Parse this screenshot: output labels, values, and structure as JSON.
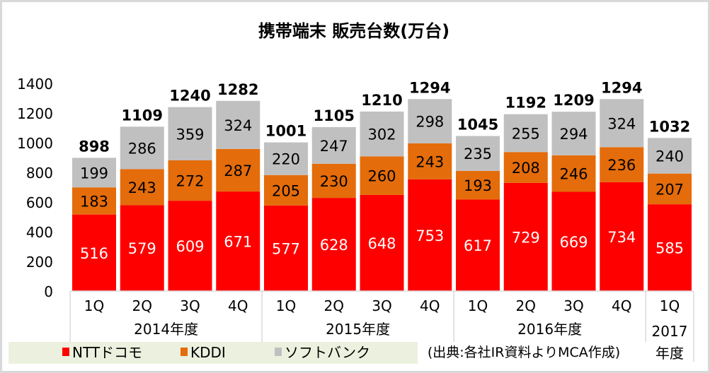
{
  "chart_data": {
    "type": "bar",
    "stacked": true,
    "title": "携帯端末 販売台数(万台)",
    "categories": [
      "1Q",
      "2Q",
      "3Q",
      "4Q",
      "1Q",
      "2Q",
      "3Q",
      "4Q",
      "1Q",
      "2Q",
      "3Q",
      "4Q",
      "1Q"
    ],
    "groups": [
      {
        "label": "2014年度",
        "count": 4
      },
      {
        "label": "2015年度",
        "count": 4
      },
      {
        "label": "2016年度",
        "count": 4
      },
      {
        "label": "2017年度",
        "label_lines": [
          "2017",
          "年度"
        ],
        "count": 1
      }
    ],
    "series": [
      {
        "name": "NTTドコモ",
        "color": "#ff0000",
        "label_color": "#ffffff",
        "values": [
          516,
          579,
          609,
          671,
          577,
          628,
          648,
          753,
          617,
          729,
          669,
          734,
          585
        ]
      },
      {
        "name": "KDDI",
        "color": "#e46c0a",
        "label_color": "#000000",
        "values": [
          183,
          243,
          272,
          287,
          205,
          230,
          260,
          243,
          193,
          208,
          246,
          236,
          207
        ]
      },
      {
        "name": "ソフトバンク",
        "color": "#c0c0c0",
        "label_color": "#000000",
        "values": [
          199,
          286,
          359,
          324,
          220,
          247,
          302,
          298,
          235,
          255,
          294,
          324,
          240
        ]
      }
    ],
    "totals": [
      898,
      1109,
      1240,
      1282,
      1001,
      1105,
      1210,
      1294,
      1045,
      1192,
      1209,
      1294,
      1032
    ],
    "ylim": [
      0,
      1400
    ],
    "yticks": [
      0,
      200,
      400,
      600,
      800,
      1000,
      1200,
      1400
    ],
    "grid": false,
    "legend_position": "bottom-left",
    "source_note": "(出典:各社IR資料よりMCA作成)"
  }
}
